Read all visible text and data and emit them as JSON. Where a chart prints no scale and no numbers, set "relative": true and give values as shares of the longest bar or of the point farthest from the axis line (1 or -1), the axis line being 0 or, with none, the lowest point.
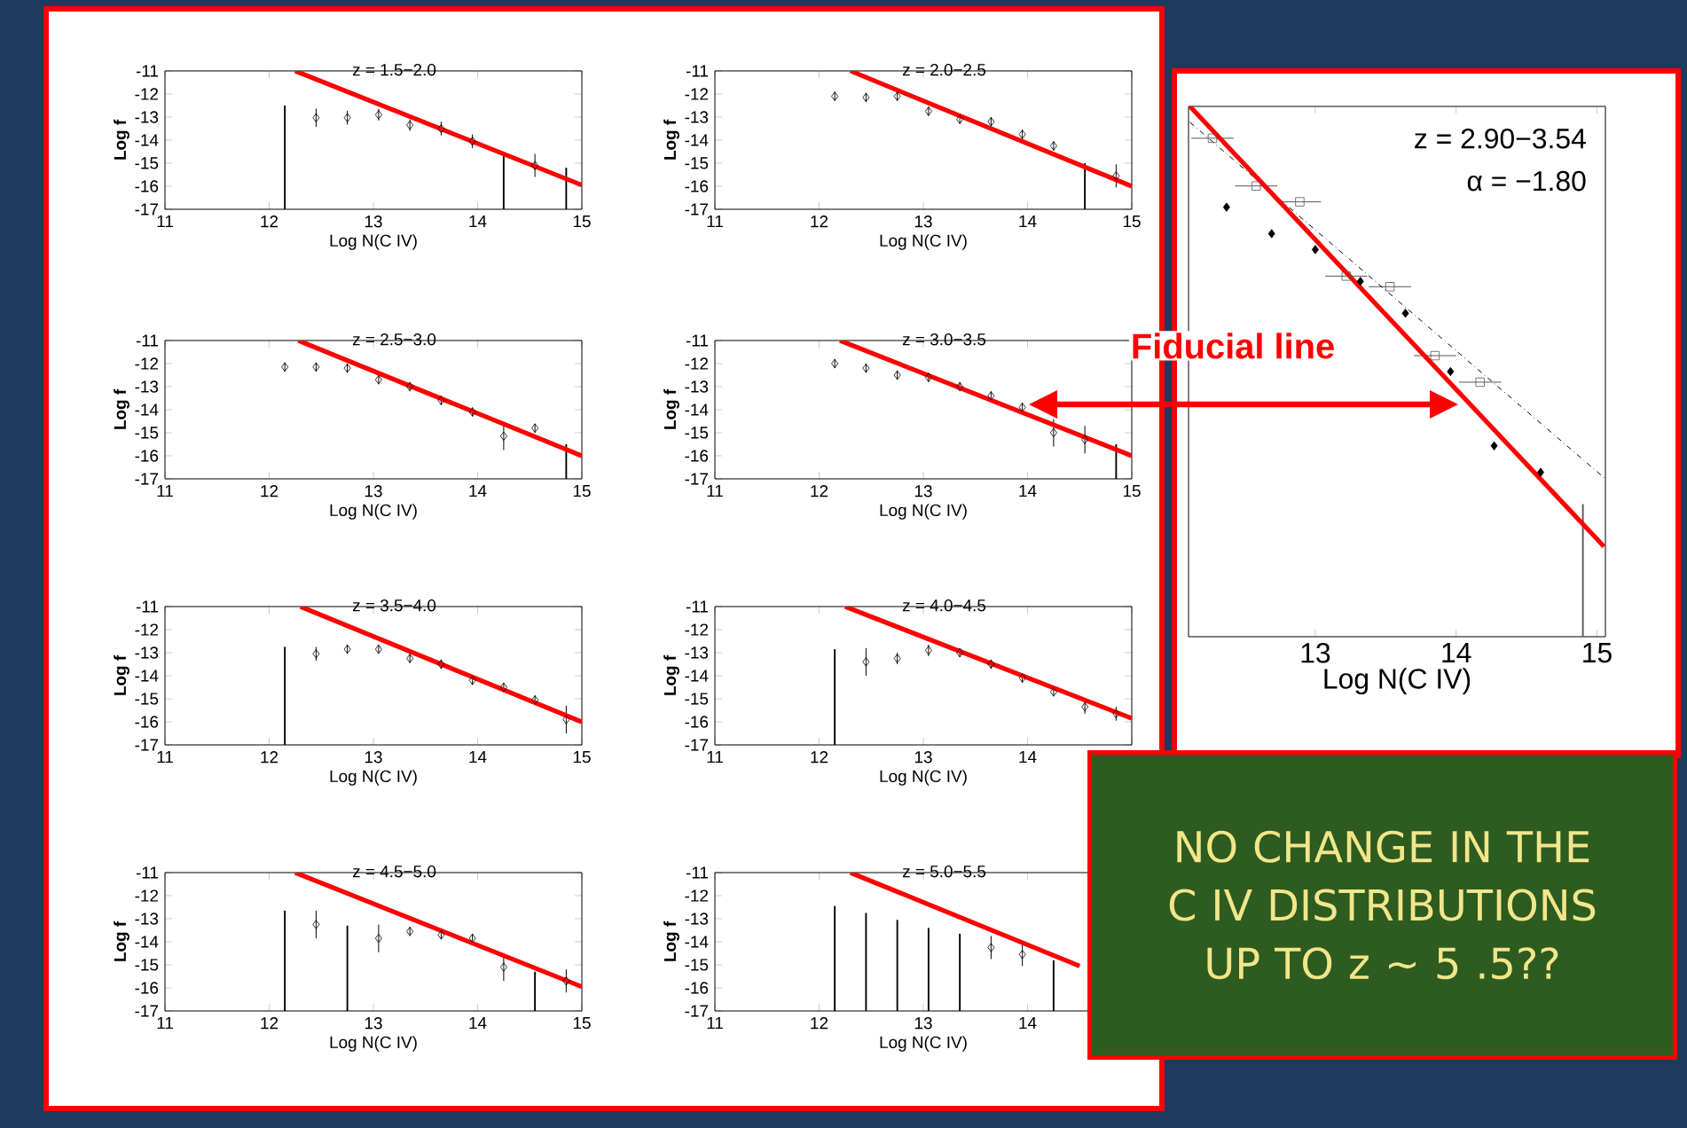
{
  "chart_data": [
    {
      "type": "scatter",
      "title": "z = 1.5−2.0",
      "xlabel": "Log N(C IV)",
      "ylabel": "Log f",
      "xlim": [
        11,
        15
      ],
      "ylim": [
        -17,
        -11
      ],
      "xticks": [
        11,
        12,
        13,
        14,
        15
      ],
      "yticks": [
        -11,
        -12,
        -13,
        -14,
        -15,
        -16,
        -17
      ],
      "series": [
        {
          "color": "#000000",
          "marker": "diamond",
          "x": [
            12.45,
            12.75,
            13.05,
            13.35,
            13.65,
            13.95,
            14.55
          ],
          "values": [
            -13.03,
            -13.03,
            -12.9,
            -13.35,
            -13.5,
            -14.05,
            -15.1
          ],
          "errors": [
            0.4,
            0.3,
            0.25,
            0.25,
            0.3,
            0.3,
            0.5
          ]
        },
        {
          "type": "bar",
          "color": "#000000",
          "x": [
            12.15,
            14.25,
            14.85
          ],
          "base": [
            -17,
            -17,
            -17
          ],
          "values": [
            4.5,
            2.3,
            1.8
          ]
        },
        {
          "type": "line",
          "color": "#ff0000",
          "line_style": "solid",
          "x": [
            12.25,
            15
          ],
          "values": [
            -11,
            -15.95
          ]
        }
      ]
    },
    {
      "type": "scatter",
      "title": "z = 2.0−2.5",
      "xlabel": "Log N(C IV)",
      "ylabel": "Log f",
      "xlim": [
        11,
        15
      ],
      "ylim": [
        -17,
        -11
      ],
      "xticks": [
        11,
        12,
        13,
        14,
        15
      ],
      "yticks": [
        -11,
        -12,
        -13,
        -14,
        -15,
        -16,
        -17
      ],
      "series": [
        {
          "color": "#000000",
          "marker": "diamond",
          "x": [
            12.15,
            12.45,
            12.75,
            13.05,
            13.35,
            13.65,
            13.95,
            14.25,
            14.85
          ],
          "values": [
            -12.1,
            -12.15,
            -12.1,
            -12.75,
            -13.1,
            -13.2,
            -13.75,
            -14.25,
            -15.55
          ],
          "errors": [
            0.2,
            0.2,
            0.2,
            0.2,
            0.2,
            0.2,
            0.2,
            0.2,
            0.5
          ]
        },
        {
          "type": "bar",
          "color": "#000000",
          "x": [
            14.55
          ],
          "base": [
            -17
          ],
          "values": [
            2.0
          ]
        },
        {
          "type": "line",
          "color": "#ff0000",
          "line_style": "solid",
          "x": [
            12.3,
            15
          ],
          "values": [
            -11,
            -16.0
          ]
        }
      ]
    },
    {
      "type": "scatter",
      "title": "z = 2.5−3.0",
      "xlabel": "Log N(C IV)",
      "ylabel": "Log f",
      "xlim": [
        11,
        15
      ],
      "ylim": [
        -17,
        -11
      ],
      "xticks": [
        11,
        12,
        13,
        14,
        15
      ],
      "yticks": [
        -11,
        -12,
        -13,
        -14,
        -15,
        -16,
        -17
      ],
      "series": [
        {
          "color": "#000000",
          "marker": "diamond",
          "x": [
            12.15,
            12.45,
            12.75,
            13.05,
            13.35,
            13.65,
            13.95,
            14.25,
            14.55
          ],
          "values": [
            -12.15,
            -12.15,
            -12.2,
            -12.7,
            -13.0,
            -13.6,
            -14.1,
            -15.15,
            -14.8
          ],
          "errors": [
            0.2,
            0.2,
            0.2,
            0.2,
            0.2,
            0.2,
            0.2,
            0.6,
            0.2
          ]
        },
        {
          "type": "bar",
          "color": "#000000",
          "x": [
            14.85
          ],
          "base": [
            -17
          ],
          "values": [
            1.5
          ]
        },
        {
          "type": "line",
          "color": "#ff0000",
          "line_style": "solid",
          "x": [
            12.28,
            15
          ],
          "values": [
            -11,
            -16.0
          ]
        }
      ]
    },
    {
      "type": "scatter",
      "title": "z = 3.0−3.5",
      "xlabel": "Log N(C IV)",
      "ylabel": "Log f",
      "xlim": [
        11,
        15
      ],
      "ylim": [
        -17,
        -11
      ],
      "xticks": [
        11,
        12,
        13,
        14,
        15
      ],
      "yticks": [
        -11,
        -12,
        -13,
        -14,
        -15,
        -16,
        -17
      ],
      "series": [
        {
          "color": "#000000",
          "marker": "diamond",
          "x": [
            12.15,
            12.45,
            12.75,
            13.05,
            13.35,
            13.65,
            13.95,
            14.25,
            14.55
          ],
          "values": [
            -12.0,
            -12.2,
            -12.5,
            -12.6,
            -13.0,
            -13.4,
            -13.9,
            -15.0,
            -15.3
          ],
          "errors": [
            0.2,
            0.2,
            0.2,
            0.2,
            0.2,
            0.2,
            0.2,
            0.6,
            0.6
          ]
        },
        {
          "type": "bar",
          "color": "#000000",
          "x": [
            14.85
          ],
          "base": [
            -17
          ],
          "values": [
            1.5
          ]
        },
        {
          "type": "line",
          "color": "#ff0000",
          "line_style": "solid",
          "x": [
            12.2,
            15
          ],
          "values": [
            -11,
            -16.0
          ]
        }
      ]
    },
    {
      "type": "scatter",
      "title": "z = 3.5−4.0",
      "xlabel": "Log N(C IV)",
      "ylabel": "Log f",
      "xlim": [
        11,
        15
      ],
      "ylim": [
        -17,
        -11
      ],
      "xticks": [
        11,
        12,
        13,
        14,
        15
      ],
      "yticks": [
        -11,
        -12,
        -13,
        -14,
        -15,
        -16,
        -17
      ],
      "series": [
        {
          "color": "#000000",
          "marker": "diamond",
          "x": [
            12.45,
            12.75,
            13.05,
            13.35,
            13.65,
            13.95,
            14.25,
            14.55,
            14.85
          ],
          "values": [
            -13.05,
            -12.85,
            -12.85,
            -13.25,
            -13.5,
            -14.2,
            -14.5,
            -15.05,
            -15.9
          ],
          "errors": [
            0.3,
            0.2,
            0.2,
            0.2,
            0.2,
            0.2,
            0.2,
            0.2,
            0.6
          ]
        },
        {
          "type": "bar",
          "color": "#000000",
          "x": [
            12.15
          ],
          "base": [
            -17
          ],
          "values": [
            4.25
          ]
        },
        {
          "type": "line",
          "color": "#ff0000",
          "line_style": "solid",
          "x": [
            12.3,
            15
          ],
          "values": [
            -11,
            -16.0
          ]
        }
      ]
    },
    {
      "type": "scatter",
      "title": "z = 4.0−4.5",
      "xlabel": "Log N(C IV)",
      "ylabel": "Log f",
      "xlim": [
        11,
        15
      ],
      "ylim": [
        -17,
        -11
      ],
      "xticks": [
        11,
        12,
        13,
        14,
        {
          "value": 15,
          "label": null
        }
      ],
      "yticks": [
        -11,
        -12,
        -13,
        -14,
        -15,
        -16,
        -17
      ],
      "series": [
        {
          "color": "#000000",
          "marker": "diamond",
          "x": [
            12.45,
            12.75,
            13.05,
            13.35,
            13.65,
            13.95,
            14.25,
            14.55,
            14.85
          ],
          "values": [
            -13.4,
            -13.25,
            -12.9,
            -13.0,
            -13.5,
            -14.1,
            -14.7,
            -15.35,
            -15.65
          ],
          "errors": [
            0.6,
            0.25,
            0.25,
            0.2,
            0.2,
            0.2,
            0.2,
            0.3,
            0.3
          ]
        },
        {
          "type": "bar",
          "color": "#000000",
          "x": [
            12.15
          ],
          "base": [
            -17
          ],
          "values": [
            4.15
          ]
        },
        {
          "type": "line",
          "color": "#ff0000",
          "line_style": "solid",
          "x": [
            12.25,
            15
          ],
          "values": [
            -11,
            -15.85
          ]
        }
      ]
    },
    {
      "type": "scatter",
      "title": "z = 4.5−5.0",
      "xlabel": "Log N(C IV)",
      "ylabel": "Log f",
      "xlim": [
        11,
        15
      ],
      "ylim": [
        -17,
        -11
      ],
      "xticks": [
        11,
        12,
        13,
        14,
        15
      ],
      "yticks": [
        -11,
        -12,
        -13,
        -14,
        -15,
        -16,
        -17
      ],
      "series": [
        {
          "color": "#000000",
          "marker": "diamond",
          "x": [
            12.45,
            13.05,
            13.35,
            13.65,
            13.95,
            14.25,
            14.85
          ],
          "values": [
            -13.25,
            -13.85,
            -13.55,
            -13.7,
            -13.85,
            -15.1,
            -15.7
          ],
          "errors": [
            0.6,
            0.6,
            0.2,
            0.2,
            0.2,
            0.6,
            0.5
          ]
        },
        {
          "type": "bar",
          "color": "#000000",
          "x": [
            12.15,
            12.75,
            14.55
          ],
          "base": [
            -17,
            -17,
            -17
          ],
          "values": [
            4.35,
            3.7,
            1.7
          ]
        },
        {
          "type": "line",
          "color": "#ff0000",
          "line_style": "solid",
          "x": [
            12.25,
            15
          ],
          "values": [
            -11,
            -15.95
          ]
        }
      ]
    },
    {
      "type": "scatter",
      "title": "z = 5.0−5.5",
      "xlabel": "Log N(C IV)",
      "ylabel": "Log f",
      "xlim": [
        11,
        15
      ],
      "ylim": [
        -17,
        -11
      ],
      "xticks": [
        11,
        12,
        13,
        14,
        {
          "value": 15,
          "label": null
        }
      ],
      "yticks": [
        -11,
        -12,
        -13,
        -14,
        -15,
        -16,
        -17
      ],
      "series": [
        {
          "color": "#000000",
          "marker": "diamond",
          "x": [
            13.65,
            13.95
          ],
          "values": [
            -14.25,
            -14.55
          ],
          "errors": [
            0.5,
            0.5
          ]
        },
        {
          "type": "bar",
          "color": "#000000",
          "x": [
            12.15,
            12.45,
            12.75,
            13.05,
            13.35,
            14.25
          ],
          "base": [
            -17,
            -17,
            -17,
            -17,
            -17,
            -17
          ],
          "values": [
            4.55,
            4.25,
            3.95,
            3.6,
            3.35,
            2.2
          ]
        },
        {
          "type": "line",
          "color": "#ff0000",
          "line_style": "solid",
          "x": [
            12.3,
            14.5
          ],
          "values": [
            -11,
            -15.05
          ]
        }
      ]
    },
    {
      "type": "scatter",
      "relative": true,
      "xlabel": "Log N(C IV)",
      "xlim": [
        12.1,
        15.06
      ],
      "xticks": [
        13,
        14,
        15
      ],
      "tick_labels": "x",
      "annotations": [
        "z = 2.90−3.54",
        "α = −1.80",
        "Fiducial line",
        "NO CHANGE IN THE C IV DISTRIBUTIONS UP TO z ~ 5 .5??"
      ],
      "series": [
        {
          "color": "#000000",
          "marker": "diamond",
          "x": [
            12.37,
            12.69,
            13.0,
            13.32,
            13.64,
            13.96,
            14.27,
            14.6
          ],
          "values": [
            0.81,
            0.76,
            0.73,
            0.67,
            0.61,
            0.5,
            0.36,
            0.31
          ]
        },
        {
          "color": "#555555",
          "marker": "square",
          "x": [
            12.27,
            12.58,
            12.89,
            13.22,
            13.53,
            13.85,
            14.17
          ],
          "values": [
            0.94,
            0.85,
            0.82,
            0.68,
            0.66,
            0.53,
            0.48
          ],
          "xerrors": [
            0.15,
            0.15,
            0.15,
            0.15,
            0.15,
            0.15,
            0.15
          ]
        },
        {
          "type": "bar",
          "color": "#555555",
          "x": [
            14.9
          ],
          "values": [
            0.25
          ]
        },
        {
          "type": "line",
          "color": "#000000",
          "line_style": "dashed",
          "x": [
            12.11,
            15.05
          ],
          "values": [
            0.97,
            0.3
          ]
        },
        {
          "type": "line",
          "color": "#ff0000",
          "line_style": "solid",
          "x": [
            12.11,
            15.05
          ],
          "values": [
            1,
            0.17
          ]
        }
      ]
    }
  ]
}
